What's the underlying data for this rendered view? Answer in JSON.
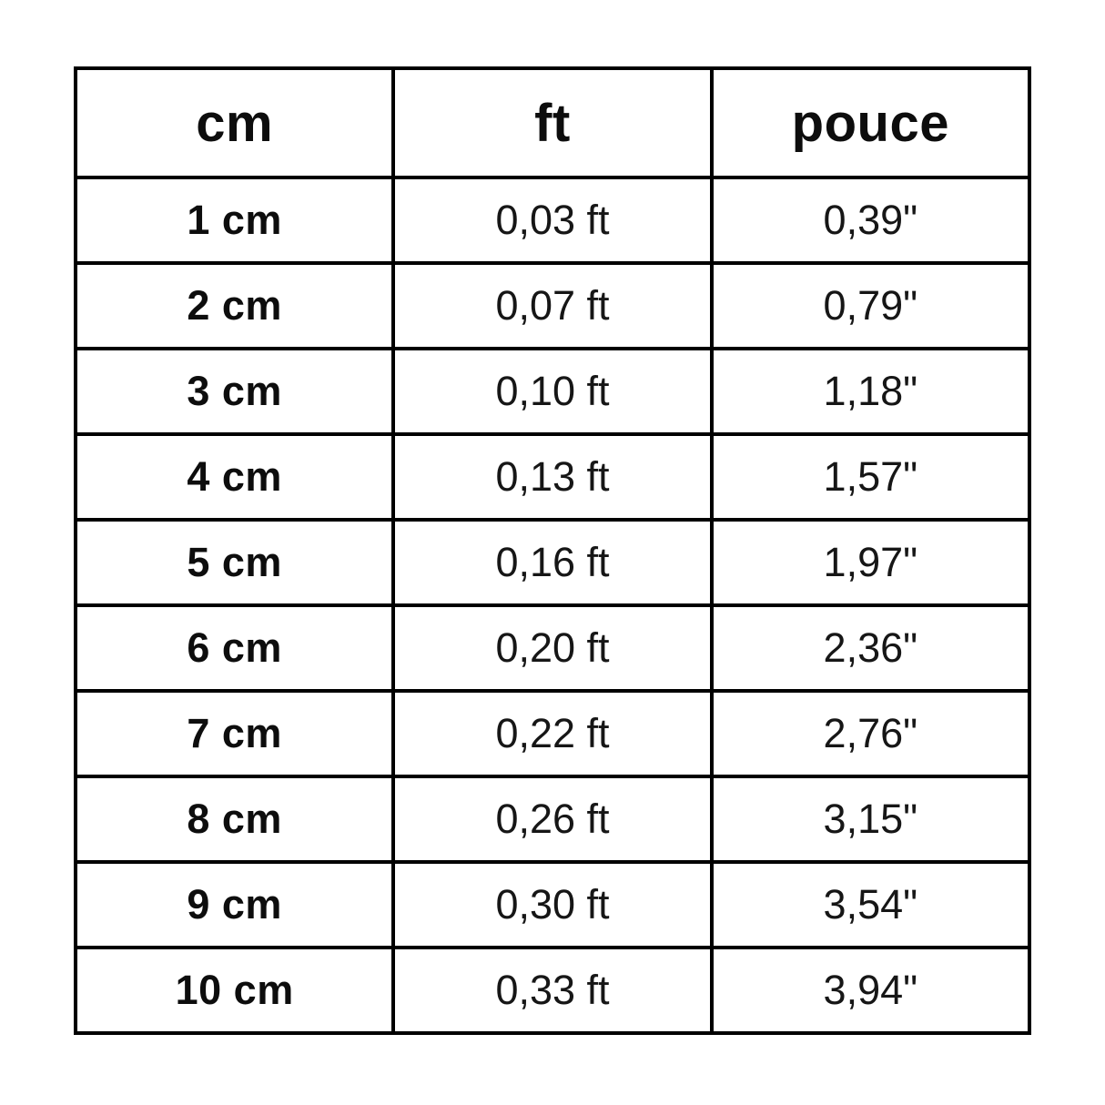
{
  "colors": {
    "background": "#ffffff",
    "border": "#000000",
    "text": "#111111"
  },
  "table": {
    "headers": [
      "cm",
      "ft",
      "pouce"
    ],
    "rows": [
      [
        "1 cm",
        "0,03 ft",
        "0,39\""
      ],
      [
        "2 cm",
        "0,07 ft",
        "0,79\""
      ],
      [
        "3 cm",
        "0,10 ft",
        "1,18\""
      ],
      [
        "4 cm",
        "0,13 ft",
        "1,57\""
      ],
      [
        "5 cm",
        "0,16 ft",
        "1,97\""
      ],
      [
        "6 cm",
        "0,20 ft",
        "2,36\""
      ],
      [
        "7 cm",
        "0,22 ft",
        "2,76\""
      ],
      [
        "8 cm",
        "0,26 ft",
        "3,15\""
      ],
      [
        "9 cm",
        "0,30 ft",
        "3,54\""
      ],
      [
        "10 cm",
        "0,33 ft",
        "3,94\""
      ]
    ]
  },
  "chart_data": {
    "type": "table",
    "title": "",
    "columns": [
      "cm",
      "ft",
      "pouce"
    ],
    "rows": [
      [
        "1 cm",
        "0,03 ft",
        "0,39\""
      ],
      [
        "2 cm",
        "0,07 ft",
        "0,79\""
      ],
      [
        "3 cm",
        "0,10 ft",
        "1,18\""
      ],
      [
        "4 cm",
        "0,13 ft",
        "1,57\""
      ],
      [
        "5 cm",
        "0,16 ft",
        "1,97\""
      ],
      [
        "6 cm",
        "0,20 ft",
        "2,36\""
      ],
      [
        "7 cm",
        "0,22 ft",
        "2,76\""
      ],
      [
        "8 cm",
        "0,26 ft",
        "3,15\""
      ],
      [
        "9 cm",
        "0,30 ft",
        "3,54\""
      ],
      [
        "10 cm",
        "0,33 ft",
        "3,94\""
      ]
    ],
    "series": [
      {
        "name": "cm",
        "values": [
          1,
          2,
          3,
          4,
          5,
          6,
          7,
          8,
          9,
          10
        ]
      },
      {
        "name": "ft",
        "values": [
          0.03,
          0.07,
          0.1,
          0.13,
          0.16,
          0.2,
          0.22,
          0.26,
          0.3,
          0.33
        ]
      },
      {
        "name": "pouce",
        "values": [
          0.39,
          0.79,
          1.18,
          1.57,
          1.97,
          2.36,
          2.76,
          3.15,
          3.54,
          3.94
        ]
      }
    ],
    "notes": "cm to feet and inches (pouce) conversion table, French decimal commas"
  }
}
